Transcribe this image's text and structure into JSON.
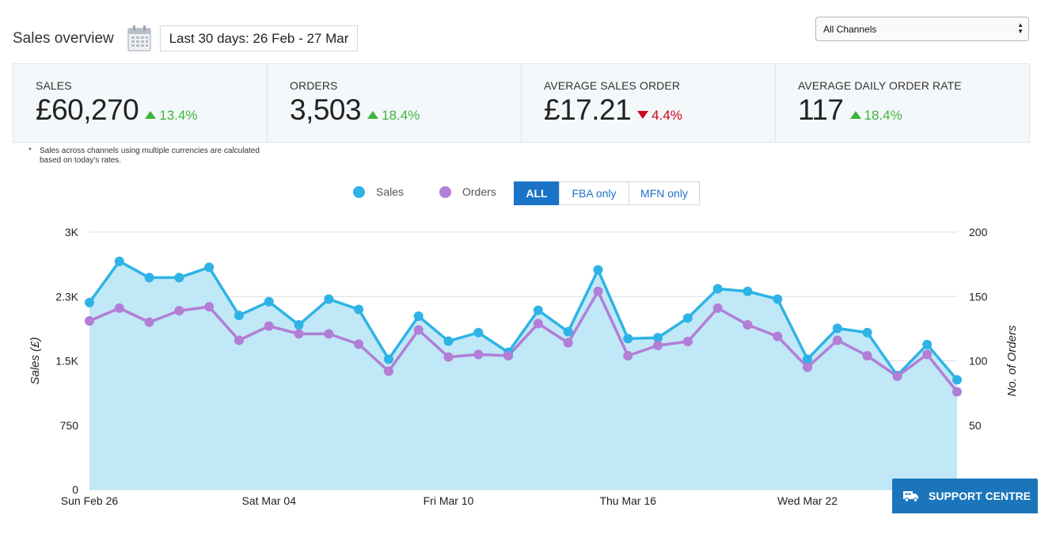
{
  "header": {
    "title": "Sales overview",
    "date_range": "Last 30 days: 26 Feb - 27 Mar",
    "channel_select": {
      "selected": "All Channels"
    }
  },
  "kpis": [
    {
      "label": "SALES",
      "value": "£60,270",
      "change": "13.4%",
      "direction": "up"
    },
    {
      "label": "ORDERS",
      "value": "3,503",
      "change": "18.4%",
      "direction": "up"
    },
    {
      "label": "AVERAGE SALES ORDER",
      "value": "£17.21",
      "change": "4.4%",
      "direction": "down"
    },
    {
      "label": "AVERAGE DAILY ORDER RATE",
      "value": "117",
      "change": "18.4%",
      "direction": "up"
    }
  ],
  "footnote": {
    "marker": "*",
    "text": "Sales across channels using multiple currencies are calculated based on today's rates."
  },
  "legend": {
    "sales": "Sales",
    "orders": "Orders"
  },
  "filters": {
    "all": "ALL",
    "fba": "FBA only",
    "mfn": "MFN only",
    "active": "all"
  },
  "support": {
    "label": "SUPPORT CENTRE"
  },
  "colors": {
    "sales_line": "#2eb3e6",
    "sales_fill": "#c0e8f6",
    "orders_line": "#b27ed6",
    "accent_blue": "#1a73c7",
    "up_green": "#3db43d",
    "down_red": "#d0021b"
  },
  "chart_data": {
    "type": "line",
    "x": [
      "Sun Feb 26",
      "Mon Feb 27",
      "Tue Feb 28",
      "Wed Mar 01",
      "Thu Mar 02",
      "Fri Mar 03",
      "Sat Mar 04",
      "Sun Mar 05",
      "Mon Mar 06",
      "Tue Mar 07",
      "Wed Mar 08",
      "Thu Mar 09",
      "Fri Mar 10",
      "Sat Mar 11",
      "Sun Mar 12",
      "Mon Mar 13",
      "Tue Mar 14",
      "Wed Mar 15",
      "Thu Mar 16",
      "Fri Mar 17",
      "Sat Mar 18",
      "Sun Mar 19",
      "Mon Mar 20",
      "Tue Mar 21",
      "Wed Mar 22",
      "Thu Mar 23",
      "Fri Mar 24",
      "Sat Mar 25",
      "Sun Mar 26",
      "Mon Mar 27"
    ],
    "x_tick_labels": [
      "Sun Feb 26",
      "Sat Mar 04",
      "Fri Mar 10",
      "Thu Mar 16",
      "Wed Mar 22"
    ],
    "series": [
      {
        "name": "Sales",
        "axis": "left",
        "filled": true,
        "values": [
          2180,
          2660,
          2470,
          2470,
          2590,
          2030,
          2190,
          1920,
          2220,
          2100,
          1520,
          2020,
          1730,
          1830,
          1600,
          2090,
          1840,
          2560,
          1760,
          1770,
          2000,
          2340,
          2310,
          2220,
          1520,
          1880,
          1830,
          1330,
          1690,
          1280
        ]
      },
      {
        "name": "Orders",
        "axis": "right",
        "filled": false,
        "values": [
          131,
          141,
          130,
          139,
          142,
          116,
          127,
          121,
          121,
          113,
          92,
          124,
          103,
          105,
          104,
          129,
          114,
          154,
          104,
          112,
          115,
          141,
          128,
          119,
          95,
          116,
          104,
          88,
          105,
          76
        ]
      }
    ],
    "y_left": {
      "label": "Sales (£)",
      "ticks": [
        "0",
        "750",
        "1.5K",
        "2.3K",
        "3K"
      ],
      "range": [
        0,
        3000
      ]
    },
    "y_right": {
      "label": "No. of Orders",
      "ticks": [
        "0",
        "50",
        "100",
        "150",
        "200"
      ],
      "range": [
        0,
        200
      ]
    },
    "grid": true
  }
}
